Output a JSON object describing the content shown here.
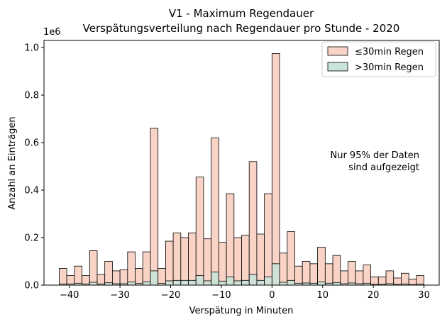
{
  "chart_data": {
    "type": "bar",
    "title": "V1 - Maximum Regendauer",
    "subtitle": "Verspätungsverteilung nach Regendauer pro Stunde - 2020",
    "xlabel": "Verspätung in Minuten",
    "ylabel": "Anzahl an Einträgen",
    "y_scale_label": "1e6",
    "xlim": [
      -45,
      33
    ],
    "ylim": [
      0,
      1.03
    ],
    "x_ticks": [
      -40,
      -30,
      -20,
      -10,
      0,
      10,
      20,
      30
    ],
    "x_tick_labels": [
      "−40",
      "−30",
      "−20",
      "−10",
      "0",
      "10",
      "20",
      "30"
    ],
    "y_ticks": [
      0,
      0.2,
      0.4,
      0.6,
      0.8,
      1.0
    ],
    "y_tick_labels": [
      "0.0",
      "0.2",
      "0.4",
      "0.6",
      "0.8",
      "1.0"
    ],
    "bin_width": 1.5,
    "x": [
      -42,
      -40.5,
      -39,
      -37.5,
      -36,
      -34.5,
      -33,
      -31.5,
      -30,
      -28.5,
      -27,
      -25.5,
      -24,
      -22.5,
      -21,
      -19.5,
      -18,
      -16.5,
      -15,
      -13.5,
      -12,
      -10.5,
      -9,
      -7.5,
      -6,
      -4.5,
      -3,
      -1.5,
      0,
      1.5,
      3,
      4.5,
      6,
      7.5,
      9,
      10.5,
      12,
      13.5,
      15,
      16.5,
      18,
      19.5,
      21,
      22.5,
      24,
      25.5,
      27,
      28.5
    ],
    "series": [
      {
        "name": "≤30min Regen",
        "color": "#f9d3c6",
        "values": [
          0.07,
          0.04,
          0.08,
          0.04,
          0.145,
          0.045,
          0.1,
          0.06,
          0.065,
          0.14,
          0.07,
          0.14,
          0.66,
          0.07,
          0.185,
          0.22,
          0.2,
          0.22,
          0.455,
          0.195,
          0.62,
          0.18,
          0.385,
          0.2,
          0.21,
          0.52,
          0.215,
          0.385,
          0.975,
          0.135,
          0.225,
          0.08,
          0.1,
          0.09,
          0.16,
          0.09,
          0.125,
          0.06,
          0.1,
          0.06,
          0.085,
          0.035,
          0.035,
          0.06,
          0.03,
          0.05,
          0.025,
          0.04
        ]
      },
      {
        "name": ">30min Regen",
        "color": "#c8e3d8",
        "values": [
          0.005,
          0.005,
          0.008,
          0.005,
          0.012,
          0.005,
          0.01,
          0.006,
          0.006,
          0.013,
          0.007,
          0.014,
          0.06,
          0.007,
          0.018,
          0.02,
          0.02,
          0.02,
          0.04,
          0.018,
          0.055,
          0.017,
          0.035,
          0.018,
          0.02,
          0.045,
          0.02,
          0.035,
          0.09,
          0.012,
          0.02,
          0.008,
          0.009,
          0.008,
          0.014,
          0.008,
          0.011,
          0.006,
          0.009,
          0.006,
          0.008,
          0.003,
          0.003,
          0.006,
          0.003,
          0.005,
          0.002,
          0.004
        ]
      }
    ],
    "legend_position": "top-right",
    "annotation": "Nur 95% der Daten\nsind aufgezeigt",
    "grid": false
  }
}
